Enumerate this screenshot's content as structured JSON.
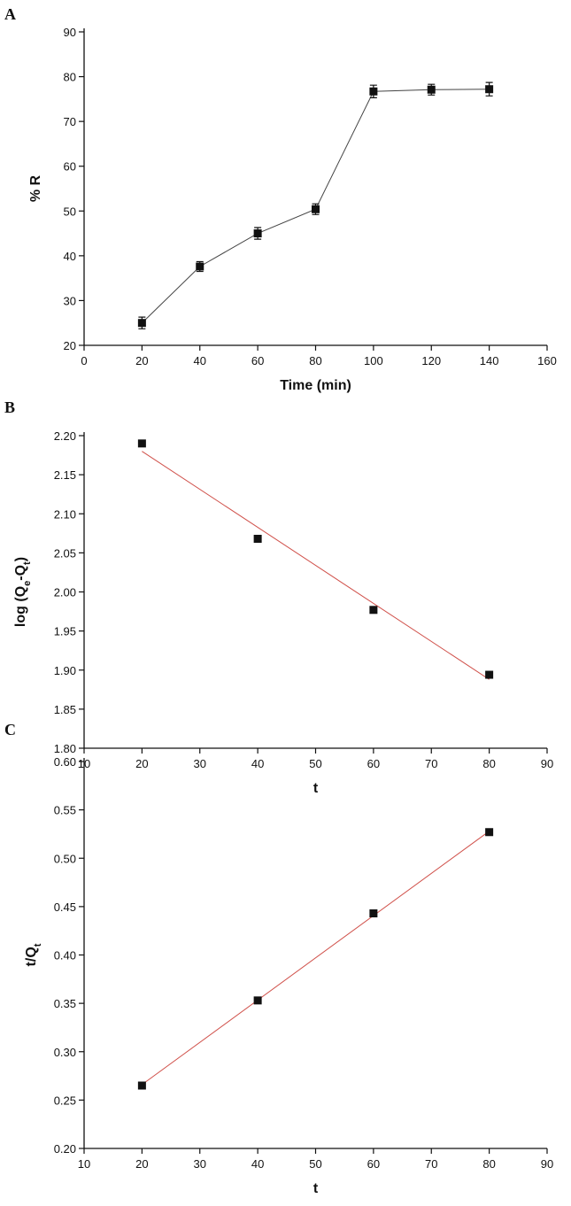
{
  "chart_data": [
    {
      "type": "line",
      "panel_label": "A",
      "x_label": "Time (min)",
      "y_label": [
        {
          "text": "% R"
        }
      ],
      "x": [
        20,
        40,
        60,
        80,
        100,
        120,
        140
      ],
      "values": [
        25,
        37.6,
        45,
        50.4,
        76.7,
        77.1,
        77.2
      ],
      "errors": [
        1.3,
        1.1,
        1.3,
        1.2,
        1.4,
        1.2,
        1.5
      ],
      "color": "#111111",
      "line_color": "#444444",
      "xlim": [
        0,
        160
      ],
      "xticks": [
        0,
        20,
        40,
        60,
        80,
        100,
        120,
        140,
        160
      ],
      "ylim": [
        20,
        90
      ],
      "yticks": [
        20,
        30,
        40,
        50,
        60,
        70,
        80,
        90
      ]
    },
    {
      "type": "scatter",
      "panel_label": "B",
      "x_label": "t",
      "y_label": [
        {
          "text": "log (Q"
        },
        {
          "text": "e",
          "sub": true
        },
        {
          "text": "-Q"
        },
        {
          "text": "t",
          "sub": true
        },
        {
          "text": ")"
        }
      ],
      "x": [
        20,
        40,
        60,
        80
      ],
      "values": [
        2.19,
        2.068,
        1.977,
        1.894
      ],
      "color": "#111111",
      "fit": {
        "x": [
          20,
          80
        ],
        "y": [
          2.18,
          1.888
        ],
        "color": "#d0504a"
      },
      "xlim": [
        10,
        90
      ],
      "xticks": [
        10,
        20,
        30,
        40,
        50,
        60,
        70,
        80,
        90
      ],
      "ylim": [
        1.8,
        2.2
      ],
      "yticks": [
        {
          "value": 1.8,
          "label": "1.80"
        },
        1.85,
        {
          "value": 1.9,
          "label": "1.90"
        },
        1.95,
        {
          "value": 2.0,
          "label": "2.00"
        },
        2.05,
        {
          "value": 2.1,
          "label": "2.10"
        },
        2.15,
        {
          "value": 2.2,
          "label": "2.20"
        }
      ]
    },
    {
      "type": "scatter",
      "panel_label": "C",
      "x_label": "t",
      "y_label": [
        {
          "text": "t/Q"
        },
        {
          "text": "t",
          "sub": true
        }
      ],
      "x": [
        20,
        40,
        60,
        80
      ],
      "values": [
        0.265,
        0.353,
        0.443,
        0.527
      ],
      "color": "#111111",
      "fit": {
        "x": [
          20,
          80
        ],
        "y": [
          0.266,
          0.528
        ],
        "color": "#d0504a"
      },
      "xlim": [
        10,
        90
      ],
      "xticks": [
        10,
        20,
        30,
        40,
        50,
        60,
        70,
        80,
        90
      ],
      "ylim": [
        0.2,
        0.6
      ],
      "yticks": [
        {
          "value": 0.2,
          "label": "0.20"
        },
        0.25,
        {
          "value": 0.3,
          "label": "0.30"
        },
        0.35,
        {
          "value": 0.4,
          "label": "0.40"
        },
        0.45,
        {
          "value": 0.5,
          "label": "0.50"
        },
        0.55,
        {
          "value": 0.6,
          "label": "0.60"
        }
      ]
    }
  ]
}
